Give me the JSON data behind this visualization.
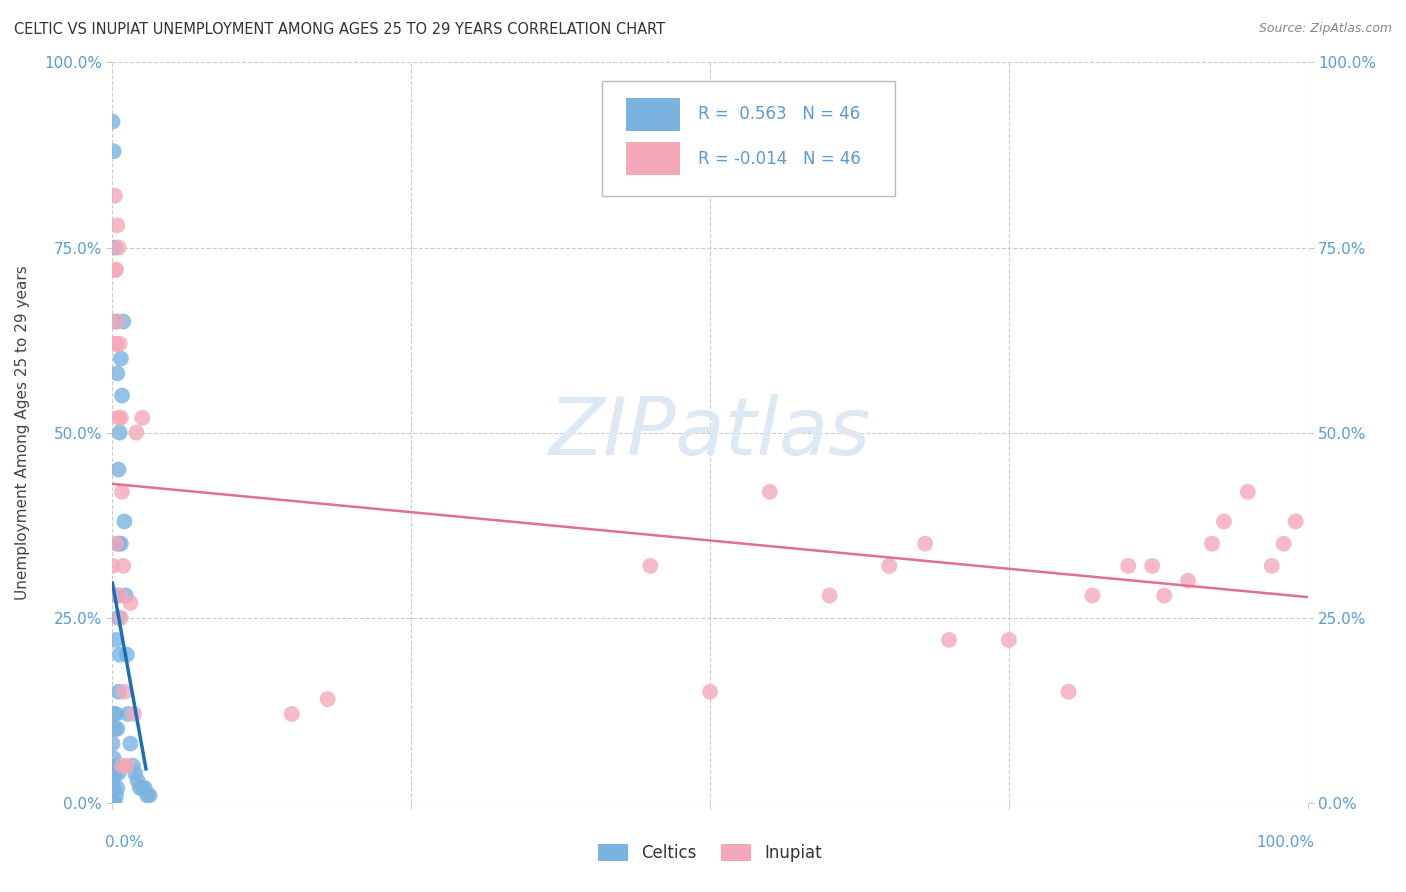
{
  "title": "CELTIC VS INUPIAT UNEMPLOYMENT AMONG AGES 25 TO 29 YEARS CORRELATION CHART",
  "source": "Source: ZipAtlas.com",
  "ylabel": "Unemployment Among Ages 25 to 29 years",
  "r_celtic": 0.563,
  "n_celtic": 46,
  "r_inupiat": -0.014,
  "n_inupiat": 46,
  "title_color": "#333333",
  "source_color": "#888888",
  "ylabel_color": "#444444",
  "axis_tick_color": "#5b9bd5",
  "grid_color": "#cccccc",
  "celtic_color": "#7ab3e0",
  "inupiat_color": "#f4a8b8",
  "celtic_line_color": "#1a6fba",
  "inupiat_line_color": "#e07090",
  "watermark_color": "#dce9f5",
  "celtic_x": [
    0.0,
    0.0,
    0.0,
    0.001,
    0.001,
    0.001,
    0.001,
    0.002,
    0.002,
    0.002,
    0.003,
    0.003,
    0.003,
    0.003,
    0.004,
    0.004,
    0.004,
    0.005,
    0.005,
    0.005,
    0.005,
    0.006,
    0.006,
    0.007,
    0.007,
    0.008,
    0.009,
    0.01,
    0.011,
    0.012,
    0.013,
    0.015,
    0.017,
    0.019,
    0.021,
    0.023,
    0.025,
    0.027,
    0.029,
    0.031,
    0.0,
    0.001,
    0.002,
    0.003,
    0.004,
    0.005
  ],
  "celtic_y": [
    0.0,
    0.03,
    0.08,
    0.0,
    0.02,
    0.06,
    0.12,
    0.0,
    0.04,
    0.1,
    0.01,
    0.05,
    0.12,
    0.22,
    0.02,
    0.1,
    0.28,
    0.04,
    0.15,
    0.25,
    0.35,
    0.2,
    0.5,
    0.35,
    0.6,
    0.55,
    0.65,
    0.38,
    0.28,
    0.2,
    0.12,
    0.08,
    0.05,
    0.04,
    0.03,
    0.02,
    0.02,
    0.02,
    0.01,
    0.01,
    0.92,
    0.88,
    0.75,
    0.65,
    0.58,
    0.45
  ],
  "inupiat_x": [
    0.0,
    0.001,
    0.002,
    0.003,
    0.003,
    0.004,
    0.005,
    0.006,
    0.007,
    0.008,
    0.01,
    0.012,
    0.015,
    0.018,
    0.02,
    0.025,
    0.15,
    0.18,
    0.45,
    0.5,
    0.55,
    0.6,
    0.65,
    0.68,
    0.7,
    0.75,
    0.8,
    0.82,
    0.85,
    0.87,
    0.88,
    0.9,
    0.92,
    0.93,
    0.95,
    0.97,
    0.98,
    0.99,
    0.002,
    0.003,
    0.004,
    0.005,
    0.006,
    0.007,
    0.008,
    0.009
  ],
  "inupiat_y": [
    0.32,
    0.62,
    0.72,
    0.35,
    0.62,
    0.78,
    0.52,
    0.28,
    0.25,
    0.05,
    0.15,
    0.05,
    0.27,
    0.12,
    0.5,
    0.52,
    0.12,
    0.14,
    0.32,
    0.15,
    0.42,
    0.28,
    0.32,
    0.35,
    0.22,
    0.22,
    0.15,
    0.28,
    0.32,
    0.32,
    0.28,
    0.3,
    0.35,
    0.38,
    0.42,
    0.32,
    0.35,
    0.38,
    0.82,
    0.72,
    0.65,
    0.75,
    0.62,
    0.52,
    0.42,
    0.32
  ],
  "xlim": [
    0.0,
    1.0
  ],
  "ylim": [
    0.0,
    1.0
  ]
}
